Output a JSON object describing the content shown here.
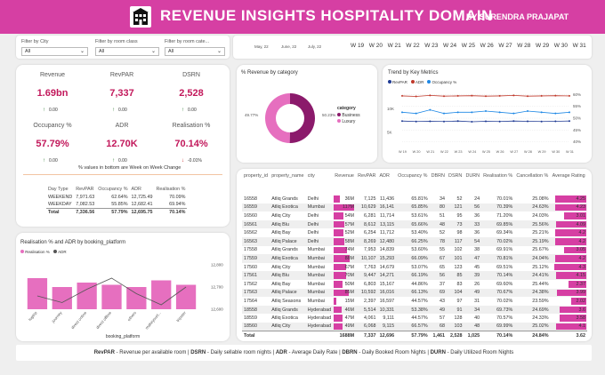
{
  "header": {
    "title": "REVENUE INSIGHTS HOSPITALITY DOMAIN",
    "author": "BY SURENDRA PRAJAPAT",
    "logo_icon": "hotel-building-icon"
  },
  "filters": [
    {
      "label": "Filter by City",
      "value": "All"
    },
    {
      "label": "Filter by room class",
      "value": "All"
    },
    {
      "label": "Filter by room cate...",
      "value": "All"
    }
  ],
  "timeline": {
    "months": [
      "May, 22",
      "June, 22",
      "July, 22"
    ],
    "weeks": [
      "W 19",
      "W 20",
      "W 21",
      "W 22",
      "W 23",
      "W 24",
      "W 25",
      "W 26",
      "W 27",
      "W 28",
      "W 29",
      "W 30",
      "W 31"
    ]
  },
  "kpis": [
    {
      "label": "Revenue",
      "value": "1.69bn",
      "change": "0.00",
      "dir": "up"
    },
    {
      "label": "RevPAR",
      "value": "7,337",
      "change": "0.00",
      "dir": "up"
    },
    {
      "label": "DSRN",
      "value": "2,528",
      "change": "0.00",
      "dir": "up"
    },
    {
      "label": "Occupancy %",
      "value": "57.79%",
      "change": "0.00",
      "dir": "up"
    },
    {
      "label": "ADR",
      "value": "12.70K",
      "change": "0.00",
      "dir": "up"
    },
    {
      "label": "Realisation %",
      "value": "70.14%",
      "change": "-0.01%",
      "dir": "down"
    }
  ],
  "kpi_note": "% values in bottom are Week on Week Change",
  "week_table": {
    "headers": [
      "Day Type",
      "RevPAR",
      "Occupancy %",
      "ADR",
      "Realisation %"
    ],
    "rows": [
      [
        "WEEKEND",
        "7,971.63",
        "62.64%",
        "12,725.49",
        "70.09%"
      ],
      [
        "WEEKDAY",
        "7,082.53",
        "55.85%",
        "12,682.41",
        "69.94%"
      ]
    ],
    "total": [
      "Total",
      "7,336.56",
      "57.79%",
      "12,695.75",
      "70.14%"
    ]
  },
  "donut": {
    "title": "% Revenue by category",
    "legend_title": "category",
    "slices": [
      {
        "name": "Business",
        "pct": 50.23,
        "label": "50.23%",
        "color": "#8b1a6b"
      },
      {
        "name": "Luxury",
        "pct": 49.77,
        "label": "49.77%",
        "color": "#e66fbf"
      }
    ]
  },
  "trend": {
    "title": "Trend by Key Metrics",
    "legend": [
      {
        "name": "RevPAR",
        "color": "#1f3a93"
      },
      {
        "name": "ADR",
        "color": "#c0392b"
      },
      {
        "name": "Occupancy %",
        "color": "#1e88e5"
      }
    ],
    "yleft": [
      "10K",
      "5K"
    ],
    "yright": [
      "60%",
      "55%",
      "50%",
      "45%",
      "40%"
    ],
    "weeks": [
      "W 19",
      "W 20",
      "W 21",
      "W 22",
      "W 23",
      "W 24",
      "W 25",
      "W 26",
      "W 27",
      "W 28",
      "W 29",
      "W 30",
      "W 31"
    ]
  },
  "realisation": {
    "title": "Realisation % and ADR by booking_platform",
    "legend": [
      {
        "name": "Realisation %",
        "color": "#e66fbf"
      },
      {
        "name": "ADR",
        "color": "#555555"
      }
    ],
    "xlabel": "booking_platform",
    "yticks": [
      "12,800",
      "12,700",
      "12,600"
    ]
  },
  "chart_data": [
    {
      "type": "pie",
      "title": "% Revenue by category",
      "categories": [
        "Business",
        "Luxury"
      ],
      "values": [
        50.23,
        49.77
      ]
    },
    {
      "type": "line",
      "title": "Trend by Key Metrics",
      "x": [
        "W 19",
        "W 20",
        "W 21",
        "W 22",
        "W 23",
        "W 24",
        "W 25",
        "W 26",
        "W 27",
        "W 28",
        "W 29",
        "W 30",
        "W 31"
      ],
      "ylim_left": [
        2000,
        14000
      ],
      "ylim_right": [
        38,
        62
      ],
      "series": [
        {
          "name": "RevPAR",
          "axis": "left",
          "values": [
            7400,
            7300,
            7350,
            7300,
            7400,
            7250,
            7350,
            7300,
            7400,
            7350,
            7300,
            7350,
            7400
          ]
        },
        {
          "name": "ADR",
          "axis": "left",
          "values": [
            12700,
            12600,
            12800,
            12650,
            12700,
            12750,
            12650,
            12700,
            12800,
            12650,
            12700,
            12750,
            12700
          ]
        },
        {
          "name": "Occupancy %",
          "axis": "right",
          "values": [
            52.5,
            52,
            53.5,
            52,
            52.5,
            52.5,
            53,
            52.5,
            52,
            53,
            52.5,
            52,
            52.5
          ]
        }
      ]
    },
    {
      "type": "bar",
      "title": "Realisation % and ADR by booking_platform",
      "categories": [
        "logtrip",
        "journey",
        "direct online",
        "direct offline",
        "others",
        "makeyourt...",
        "tripster"
      ],
      "series": [
        {
          "name": "Realisation %",
          "values": [
            70.4,
            70.0,
            70.2,
            70.1,
            70.0,
            70.3,
            70.1
          ]
        },
        {
          "name": "ADR",
          "values": [
            12660,
            12630,
            12690,
            12740,
            12670,
            12620,
            12700
          ]
        }
      ],
      "ylim": [
        12600,
        12800
      ],
      "xlabel": "booking_platform"
    }
  ],
  "main_table": {
    "headers": [
      "property_id",
      "property_name",
      "city",
      "Revenue",
      "RevPAR",
      "ADR",
      "Occupancy %",
      "DBRN",
      "DSRN",
      "DURN",
      "Realisation %",
      "Cancellation %",
      "Average Rating"
    ],
    "rows": [
      [
        "16558",
        "Atliq Grands",
        "Delhi",
        "36M",
        "7,125",
        "11,436",
        "65.81%",
        "34",
        "52",
        "24",
        "70.01%",
        "25.08%",
        "4.25"
      ],
      [
        "16559",
        "Atliq Exotica",
        "Mumbai",
        "117M",
        "10,629",
        "16,141",
        "65.85%",
        "80",
        "121",
        "56",
        "70.39%",
        "24.63%",
        "4.23"
      ],
      [
        "16560",
        "Atliq City",
        "Delhi",
        "54M",
        "6,281",
        "11,714",
        "53.61%",
        "51",
        "95",
        "36",
        "71.20%",
        "24.03%",
        "3.01"
      ],
      [
        "16561",
        "Atliq Blu",
        "Delhi",
        "57M",
        "8,612",
        "13,115",
        "65.66%",
        "48",
        "73",
        "33",
        "69.85%",
        "25.56%",
        "4.09"
      ],
      [
        "16562",
        "Atliq Bay",
        "Delhi",
        "52M",
        "6,254",
        "11,712",
        "53.40%",
        "52",
        "98",
        "36",
        "69.34%",
        "25.21%",
        "4.2"
      ],
      [
        "16563",
        "Atliq Palace",
        "Delhi",
        "58M",
        "8,269",
        "12,480",
        "66.25%",
        "78",
        "117",
        "54",
        "70.02%",
        "25.19%",
        "4.2"
      ],
      [
        "17558",
        "Atliq Grands",
        "Mumbai",
        "74M",
        "7,953",
        "14,839",
        "53.60%",
        "55",
        "102",
        "38",
        "69.91%",
        "25.67%",
        "3.05"
      ],
      [
        "17559",
        "Atliq Exotica",
        "Mumbai",
        "88M",
        "10,107",
        "15,293",
        "66.09%",
        "67",
        "101",
        "47",
        "70.81%",
        "24.04%",
        "4.2"
      ],
      [
        "17560",
        "Atliq City",
        "Mumbai",
        "67M",
        "7,763",
        "14,679",
        "53.07%",
        "65",
        "123",
        "45",
        "69.51%",
        "25.12%",
        "4.3"
      ],
      [
        "17561",
        "Atliq Blu",
        "Mumbai",
        "70M",
        "9,447",
        "14,271",
        "66.19%",
        "56",
        "85",
        "39",
        "70.14%",
        "24.41%",
        "4.15"
      ],
      [
        "17562",
        "Atliq Bay",
        "Mumbai",
        "50M",
        "6,803",
        "15,167",
        "44.86%",
        "37",
        "83",
        "26",
        "69.60%",
        "25.44%",
        "2.37"
      ],
      [
        "17563",
        "Atliq Palace",
        "Mumbai",
        "85M",
        "10,592",
        "16,016",
        "66.13%",
        "69",
        "104",
        "49",
        "70.67%",
        "24.38%",
        "3.99"
      ],
      [
        "17564",
        "Atliq Seasons",
        "Mumbai",
        "15M",
        "2,397",
        "16,597",
        "44.57%",
        "43",
        "97",
        "31",
        "70.02%",
        "23.59%",
        "2.02"
      ],
      [
        "18558",
        "Atliq Grands",
        "Hyderabad",
        "46M",
        "5,514",
        "10,331",
        "53.38%",
        "49",
        "91",
        "34",
        "69.73%",
        "24.69%",
        "3.6"
      ],
      [
        "18559",
        "Atliq Exotica",
        "Hyderabad",
        "47M",
        "4,061",
        "9,111",
        "44.57%",
        "57",
        "128",
        "40",
        "70.57%",
        "24.33%",
        "3.58"
      ],
      [
        "18560",
        "Atliq City",
        "Hyderabad",
        "49M",
        "6,068",
        "9,115",
        "66.57%",
        "68",
        "103",
        "48",
        "69.99%",
        "25.02%",
        "4.1"
      ]
    ],
    "revenue_m": [
      36,
      117,
      54,
      57,
      52,
      58,
      74,
      88,
      67,
      70,
      50,
      85,
      15,
      46,
      47,
      49
    ],
    "rating": [
      4.25,
      4.23,
      3.01,
      4.09,
      4.2,
      4.2,
      3.05,
      4.2,
      4.3,
      4.15,
      2.37,
      3.99,
      2.02,
      3.6,
      3.58,
      4.1
    ],
    "total": [
      "Total",
      "",
      "",
      "1688M",
      "7,337",
      "12,696",
      "57.79%",
      "1,461",
      "2,528",
      "1,025",
      "70.14%",
      "24.84%",
      "3.62"
    ]
  },
  "footer": [
    {
      "key": "RevPAR",
      "text": " - Revenue per available room | "
    },
    {
      "key": "DSRN",
      "text": " - Daily sellable room nights | "
    },
    {
      "key": "ADR",
      "text": " - Average Daily Rate | "
    },
    {
      "key": "DBRN",
      "text": " - Daily Booked Room Nights | "
    },
    {
      "key": "DURN",
      "text": " - Daily Utilized Room Nights"
    }
  ]
}
